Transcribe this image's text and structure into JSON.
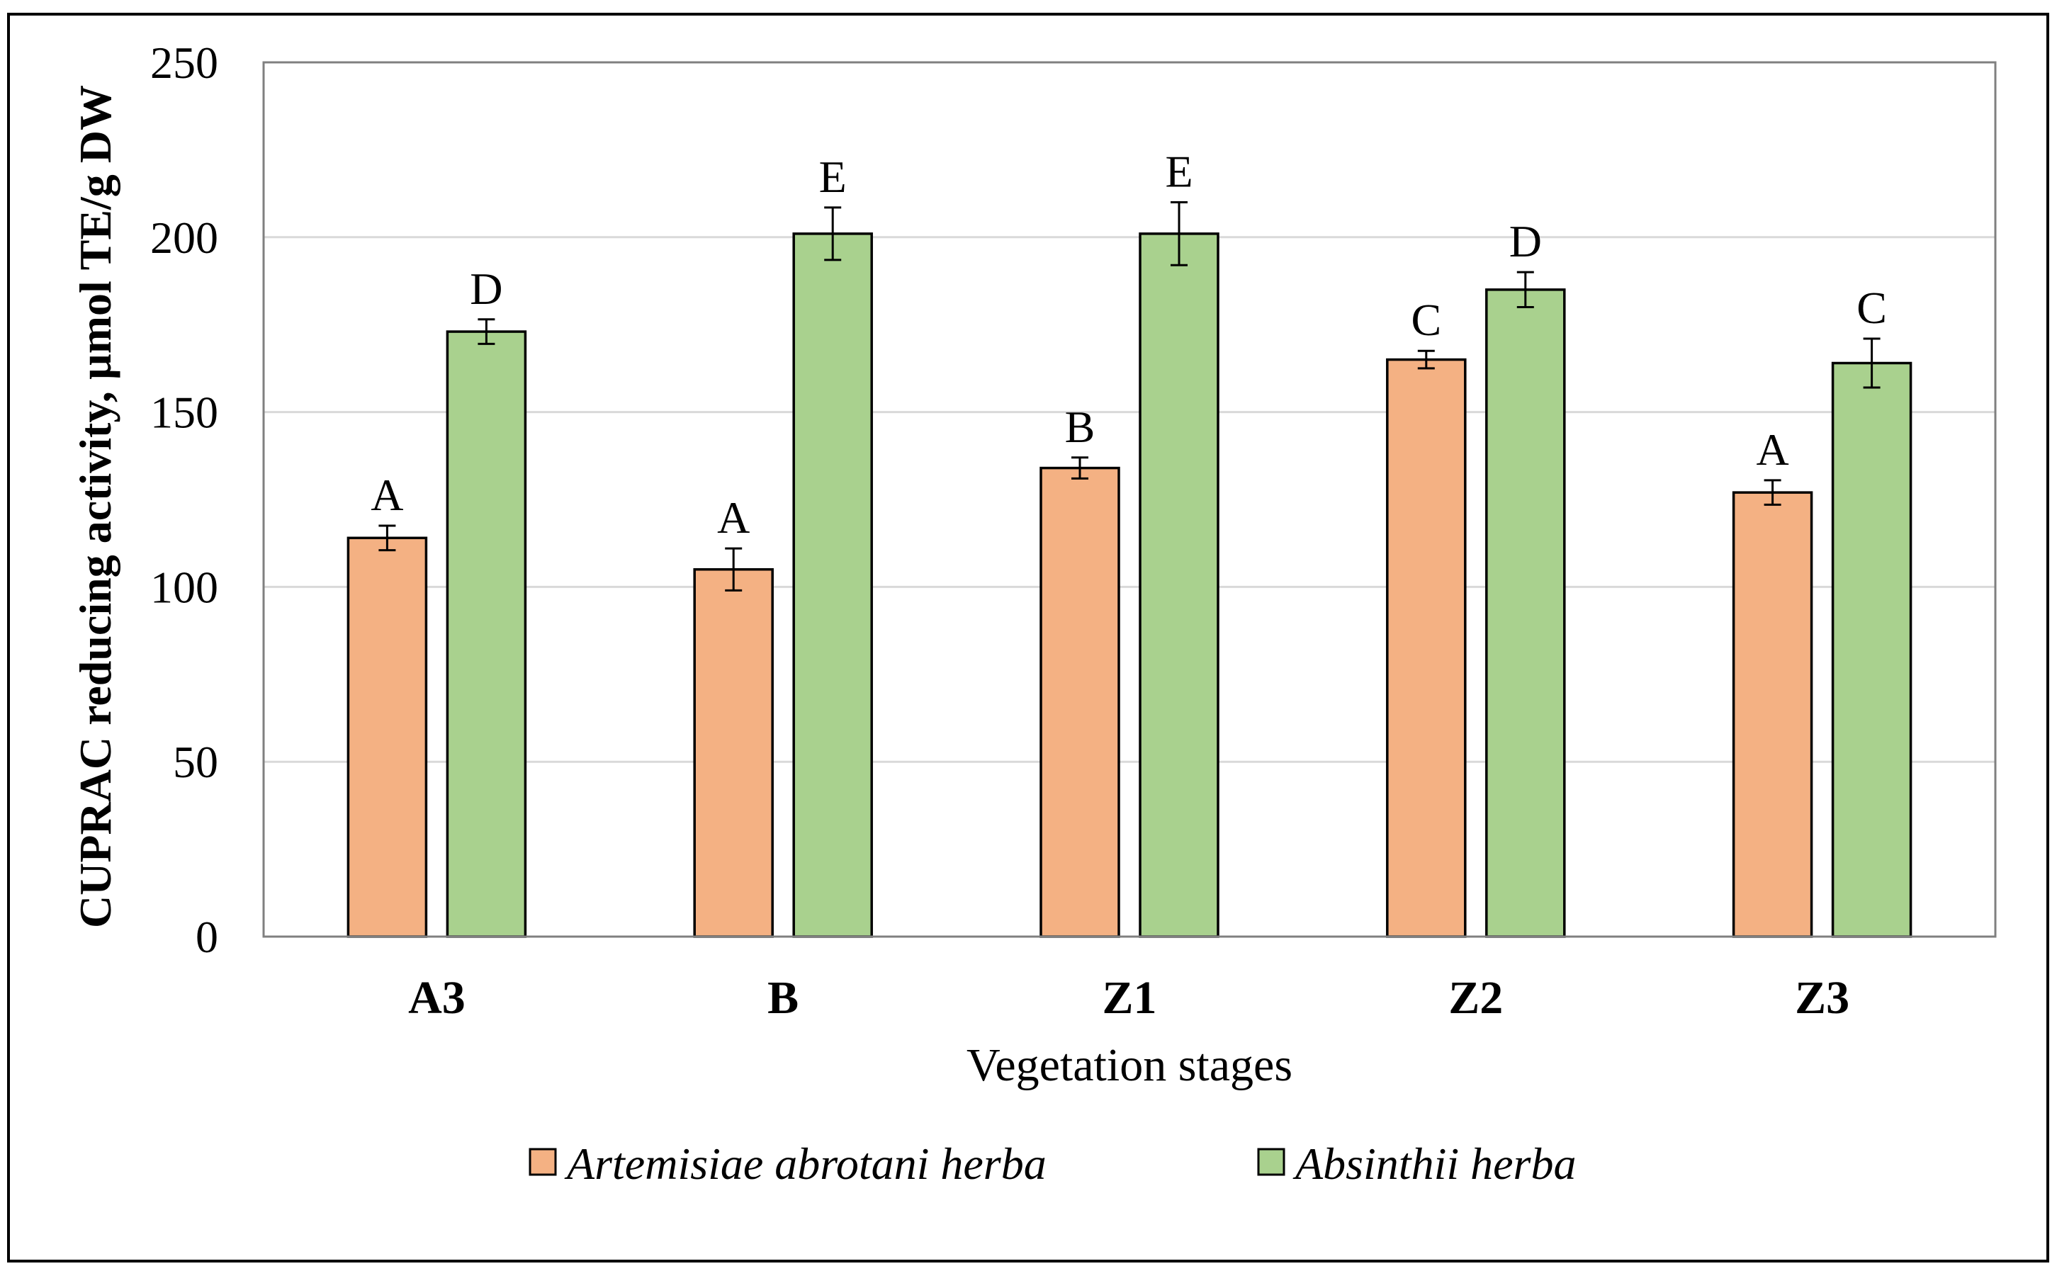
{
  "chart_data": {
    "type": "bar",
    "title": "",
    "xlabel": "Vegetation stages",
    "ylabel": "CUPRAC reducing activity, µmol TE/g DW",
    "ylim": [
      0,
      250
    ],
    "yticks": [
      0,
      50,
      100,
      150,
      200,
      250
    ],
    "grid": true,
    "legend_position": "bottom",
    "categories": [
      "A3",
      "B",
      "Z1",
      "Z2",
      "Z3"
    ],
    "series": [
      {
        "name": "Artemisiae abrotani herba",
        "color": "#f4b183",
        "values": [
          114,
          105,
          134,
          165,
          127
        ],
        "errors": [
          3.5,
          6,
          3,
          2.5,
          3.5
        ],
        "letters": [
          "A",
          "A",
          "B",
          "C",
          "A"
        ]
      },
      {
        "name": "Absinthii herba",
        "color": "#a9d18e",
        "values": [
          173,
          201,
          201,
          185,
          164
        ],
        "errors": [
          3.5,
          7.5,
          9,
          5,
          7
        ],
        "letters": [
          "D",
          "E",
          "E",
          "D",
          "C"
        ]
      }
    ]
  }
}
